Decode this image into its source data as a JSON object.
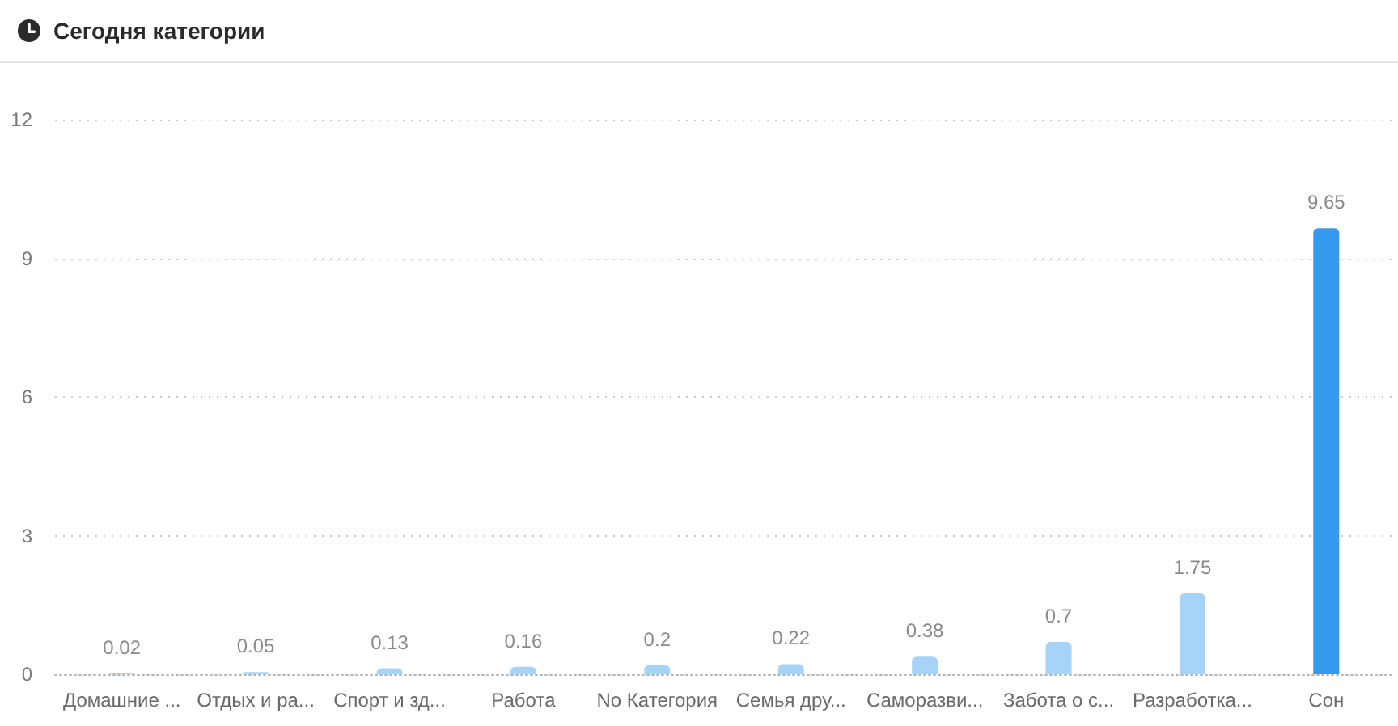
{
  "chart_data": {
    "type": "bar",
    "title": "Сегодня категории",
    "categories": [
      "Домашние ...",
      "Отдых и ра...",
      "Спорт и зд...",
      "Работа",
      "No Категория",
      "Семья дру...",
      "Саморазви...",
      "Забота о с...",
      "Разработка...",
      "Сон"
    ],
    "values": [
      0.02,
      0.05,
      0.13,
      0.16,
      0.2,
      0.22,
      0.38,
      0.7,
      1.75,
      9.65
    ],
    "colors": [
      "#a6d4f8",
      "#a6d4f8",
      "#a6d4f8",
      "#a6d4f8",
      "#a6d4f8",
      "#a6d4f8",
      "#a6d4f8",
      "#a6d4f8",
      "#a6d4f8",
      "#339af0"
    ],
    "ylim": [
      0,
      12
    ],
    "yticks": [
      0,
      3,
      6,
      9,
      12
    ],
    "grid": "y",
    "data_labels": true
  }
}
